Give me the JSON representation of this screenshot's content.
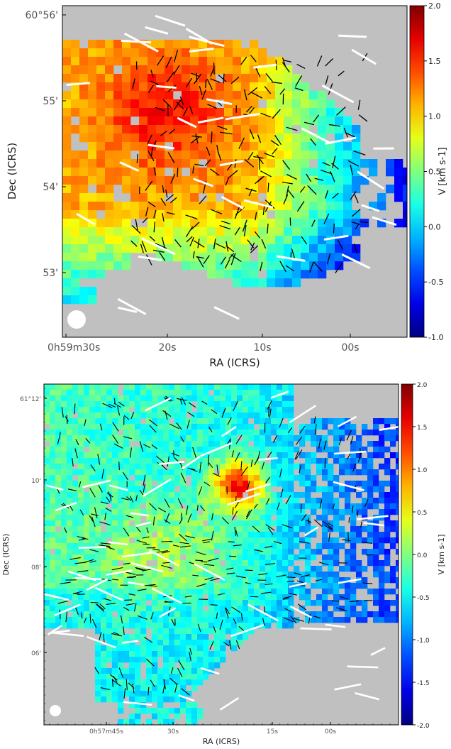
{
  "chart_data": [
    {
      "type": "heatmap",
      "title": "",
      "xlabel": "RA (ICRS)",
      "ylabel": "Dec (ICRS)",
      "x_ticks": [
        "0h59m30s",
        "20s",
        "10s",
        "00s"
      ],
      "y_ticks": [
        "60°56'",
        "55'",
        "54'",
        "53'"
      ],
      "colorbar": {
        "label": "V [km s-1]",
        "ticks": [
          "2.0",
          "1.5",
          "1.0",
          "0.5",
          "0.0",
          "-0.5",
          "-1.0"
        ],
        "vmin": -1.0,
        "vmax": 2.0
      },
      "beam": "circle, bottom-left",
      "background_color": "#c0c0c0",
      "colormap": "jet",
      "overlay": "polarization vectors (black: short, white: long)"
    },
    {
      "type": "heatmap",
      "title": "",
      "xlabel": "RA (ICRS)",
      "ylabel": "Dec (ICRS)",
      "x_ticks": [
        "0h57m45s",
        "30s",
        "15s",
        "00s"
      ],
      "y_ticks": [
        "61°12'",
        "10'",
        "08'",
        "06'"
      ],
      "colorbar": {
        "label": "V [km s-1]",
        "ticks": [
          "2.0",
          "1.5",
          "1.0",
          "0.5",
          "0.0",
          "-0.5",
          "-1.0",
          "-1.5",
          "-2.0"
        ],
        "vmin": -2.0,
        "vmax": 2.0
      },
      "beam": "circle, bottom-left",
      "background_color": "#c0c0c0",
      "colormap": "jet",
      "overlay": "polarization vectors (black: short, white: long)"
    }
  ]
}
